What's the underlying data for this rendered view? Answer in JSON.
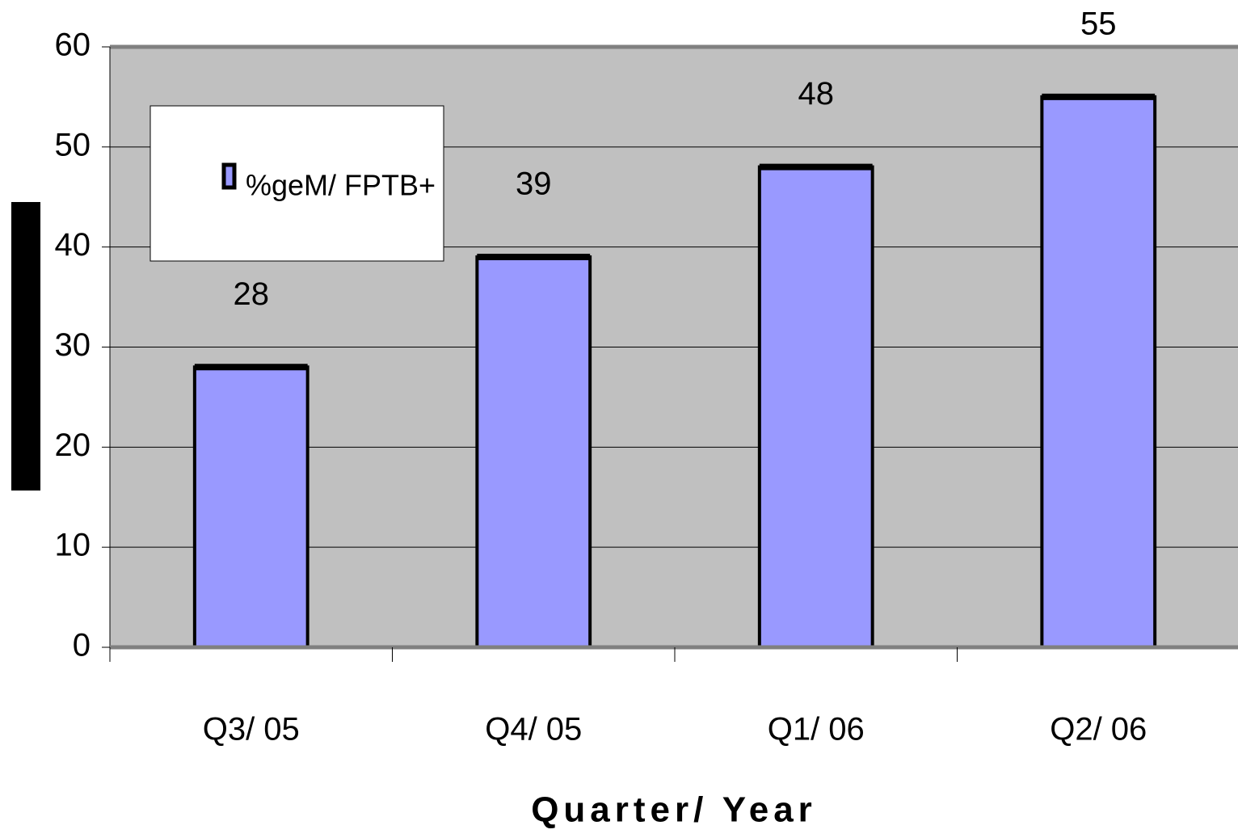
{
  "chart_data": {
    "type": "bar",
    "categories": [
      "Q3/ 05",
      "Q4/ 05",
      "Q1/ 06",
      "Q2/ 06"
    ],
    "series": [
      {
        "name": "%geM/ FPTB+",
        "color": "#9999ff",
        "values": [
          28,
          39,
          48,
          55
        ]
      }
    ],
    "x_label": "Quarter/ Year",
    "ylim": [
      0,
      60
    ],
    "yticks": [
      0,
      10,
      20,
      30,
      40,
      50,
      60
    ],
    "grid": true
  }
}
